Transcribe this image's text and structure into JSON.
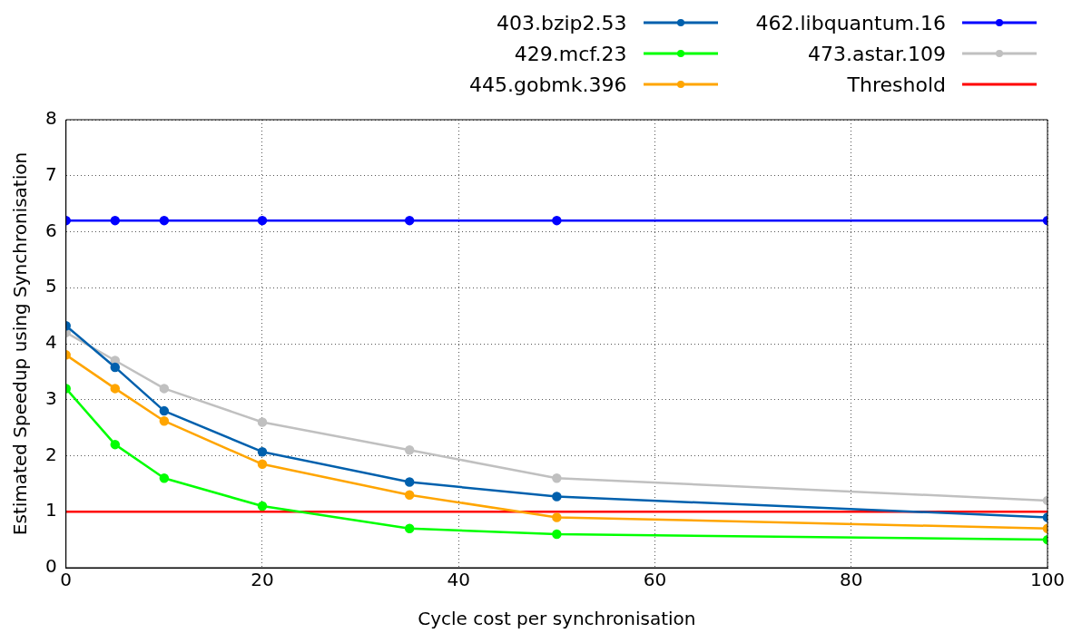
{
  "chart_data": {
    "type": "line",
    "xlabel": "Cycle cost per synchronisation",
    "ylabel": "Estimated Speedup using Synchronisation",
    "x": [
      0,
      5,
      10,
      20,
      35,
      50,
      100
    ],
    "xlim": [
      0,
      100
    ],
    "xticks": [
      0,
      20,
      40,
      60,
      80,
      100
    ],
    "ylim": [
      0,
      8
    ],
    "yticks": [
      0,
      1,
      2,
      3,
      4,
      5,
      6,
      7,
      8
    ],
    "grid": true,
    "legend": "top",
    "marker": "circle",
    "series": [
      {
        "name": "403.bzip2.53",
        "color": "#0060ad",
        "values": [
          4.32,
          3.58,
          2.8,
          2.07,
          1.53,
          1.27,
          0.9
        ]
      },
      {
        "name": "429.mcf.23",
        "color": "#00ff00",
        "values": [
          3.2,
          2.2,
          1.6,
          1.1,
          0.7,
          0.6,
          0.5
        ]
      },
      {
        "name": "445.gobmk.396",
        "color": "#ffa500",
        "values": [
          3.8,
          3.2,
          2.62,
          1.85,
          1.3,
          0.9,
          0.7
        ]
      },
      {
        "name": "462.libquantum.16",
        "color": "#0000ff",
        "values": [
          6.2,
          6.2,
          6.2,
          6.2,
          6.2,
          6.2,
          6.2
        ]
      },
      {
        "name": "473.astar.109",
        "color": "#c0c0c0",
        "values": [
          4.2,
          3.7,
          3.2,
          2.6,
          2.1,
          1.6,
          1.2
        ]
      },
      {
        "name": "Threshold",
        "color": "#ff0000",
        "x": [
          0,
          100
        ],
        "values": [
          1,
          1
        ],
        "marker": "none"
      }
    ]
  }
}
